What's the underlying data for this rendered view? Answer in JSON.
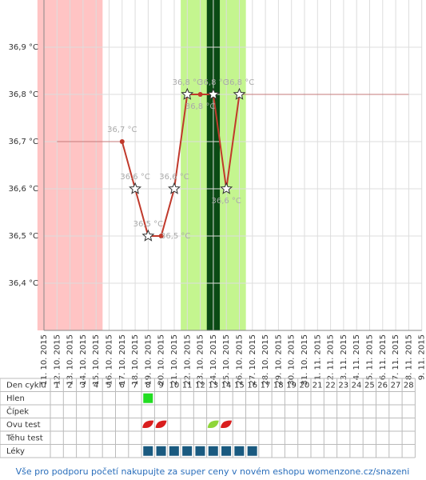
{
  "chart_data": {
    "type": "line",
    "categories": [
      "11. 10. 2015",
      "12. 10. 2015",
      "13. 10. 2015",
      "14. 10. 2015",
      "15. 10. 2015",
      "16. 10. 2015",
      "17. 10. 2015",
      "18. 10. 2015",
      "19. 10. 2015",
      "20. 10. 2015",
      "21. 10. 2015",
      "22. 10. 2015",
      "23. 10. 2015",
      "24. 10. 2015",
      "25. 10. 2015",
      "26. 10. 2015",
      "27. 10. 2015",
      "28. 10. 2015",
      "29. 10. 2015",
      "30. 10. 2015",
      "31. 10. 2015",
      "1. 11. 2015",
      "2. 11. 2015",
      "3. 11. 2015",
      "4. 11. 2015",
      "5. 11. 2015",
      "6. 11. 2015",
      "7. 11. 2015",
      "8. 11. 2015",
      "9. 11. 2015"
    ],
    "ylim": [
      36.3,
      37.0
    ],
    "yticks": [
      {
        "value": 36.4,
        "label": "36,4 °C"
      },
      {
        "value": 36.5,
        "label": "36,5 °C"
      },
      {
        "value": 36.6,
        "label": "36,6 °C"
      },
      {
        "value": 36.7,
        "label": "36,7 °C"
      },
      {
        "value": 36.8,
        "label": "36,8 °C"
      },
      {
        "value": 36.9,
        "label": "36,9 °C"
      }
    ],
    "grid": true,
    "bands": [
      {
        "start": "11. 10. 2015",
        "end": "15. 10. 2015",
        "color": "#ffc4c4"
      },
      {
        "start": "22. 10. 2015",
        "end": "26. 10. 2015",
        "color": "#c4f58f"
      },
      {
        "start": "24. 10. 2015",
        "end": "24. 10. 2015",
        "color": "#0a4a14"
      }
    ],
    "series": [
      {
        "color": "#c47a7a",
        "width": 1,
        "values": [
          null,
          36.7,
          36.7,
          36.7,
          36.7,
          36.7,
          36.7,
          null,
          null,
          null,
          null,
          null,
          null,
          null,
          null,
          36.8,
          36.8,
          36.8,
          36.8,
          36.8,
          36.8,
          36.8,
          36.8,
          36.8,
          36.8,
          36.8,
          36.8,
          36.8,
          36.8,
          null
        ]
      },
      {
        "color": "#c0392b",
        "width": 2,
        "values": [
          null,
          null,
          null,
          null,
          null,
          null,
          36.7,
          36.6,
          36.5,
          36.5,
          36.6,
          36.8,
          36.8,
          36.8,
          36.6,
          36.8,
          null,
          null,
          null,
          null,
          null,
          null,
          null,
          null,
          null,
          null,
          null,
          null,
          null,
          null
        ],
        "value_labels": [
          null,
          null,
          null,
          null,
          null,
          null,
          "36,7 °C",
          "36,6 °C",
          "36,5 °C",
          "36,5 °C",
          "36,6 °C",
          "36,8 °C",
          "36,8 °C",
          "36,8 °C",
          "36,6 °C",
          "36,8 °C",
          null,
          null,
          null,
          null,
          null,
          null,
          null,
          null,
          null,
          null,
          null,
          null,
          null,
          null
        ],
        "markers": [
          null,
          null,
          null,
          null,
          null,
          null,
          "circle",
          "star",
          "star",
          "circle",
          "star",
          "star",
          "circle",
          "star",
          "star",
          "star",
          null,
          null,
          null,
          null,
          null,
          null,
          null,
          null,
          null,
          null,
          null,
          null,
          null,
          null
        ]
      }
    ]
  },
  "table": {
    "header": "Den cyklu",
    "days": [
      1,
      2,
      3,
      4,
      5,
      6,
      7,
      8,
      9,
      10,
      11,
      12,
      13,
      14,
      15,
      16,
      17,
      18,
      19,
      20,
      21,
      22,
      23,
      24,
      25,
      26,
      27,
      28
    ],
    "rows": [
      {
        "label": "Hlen",
        "icons": [
          {
            "day": 8,
            "kind": "green-square"
          }
        ]
      },
      {
        "label": "Čípek",
        "icons": []
      },
      {
        "label": "Ovu test",
        "icons": [
          {
            "day": 8,
            "kind": "red-leaf"
          },
          {
            "day": 9,
            "kind": "red-leaf"
          },
          {
            "day": 13,
            "kind": "green-leaf"
          },
          {
            "day": 14,
            "kind": "red-leaf"
          }
        ]
      },
      {
        "label": "Těhu test",
        "icons": []
      },
      {
        "label": "Léky",
        "icons": [
          {
            "day": 8,
            "kind": "blue-square"
          },
          {
            "day": 9,
            "kind": "blue-square"
          },
          {
            "day": 10,
            "kind": "blue-square"
          },
          {
            "day": 11,
            "kind": "blue-square"
          },
          {
            "day": 12,
            "kind": "blue-square"
          },
          {
            "day": 13,
            "kind": "blue-square"
          },
          {
            "day": 14,
            "kind": "blue-square"
          },
          {
            "day": 15,
            "kind": "blue-square"
          },
          {
            "day": 16,
            "kind": "blue-square"
          }
        ]
      }
    ]
  },
  "footer": {
    "text": "Vše pro podporu početí nakupujte za super ceny v novém eshopu womenzone.cz/snazeni"
  }
}
